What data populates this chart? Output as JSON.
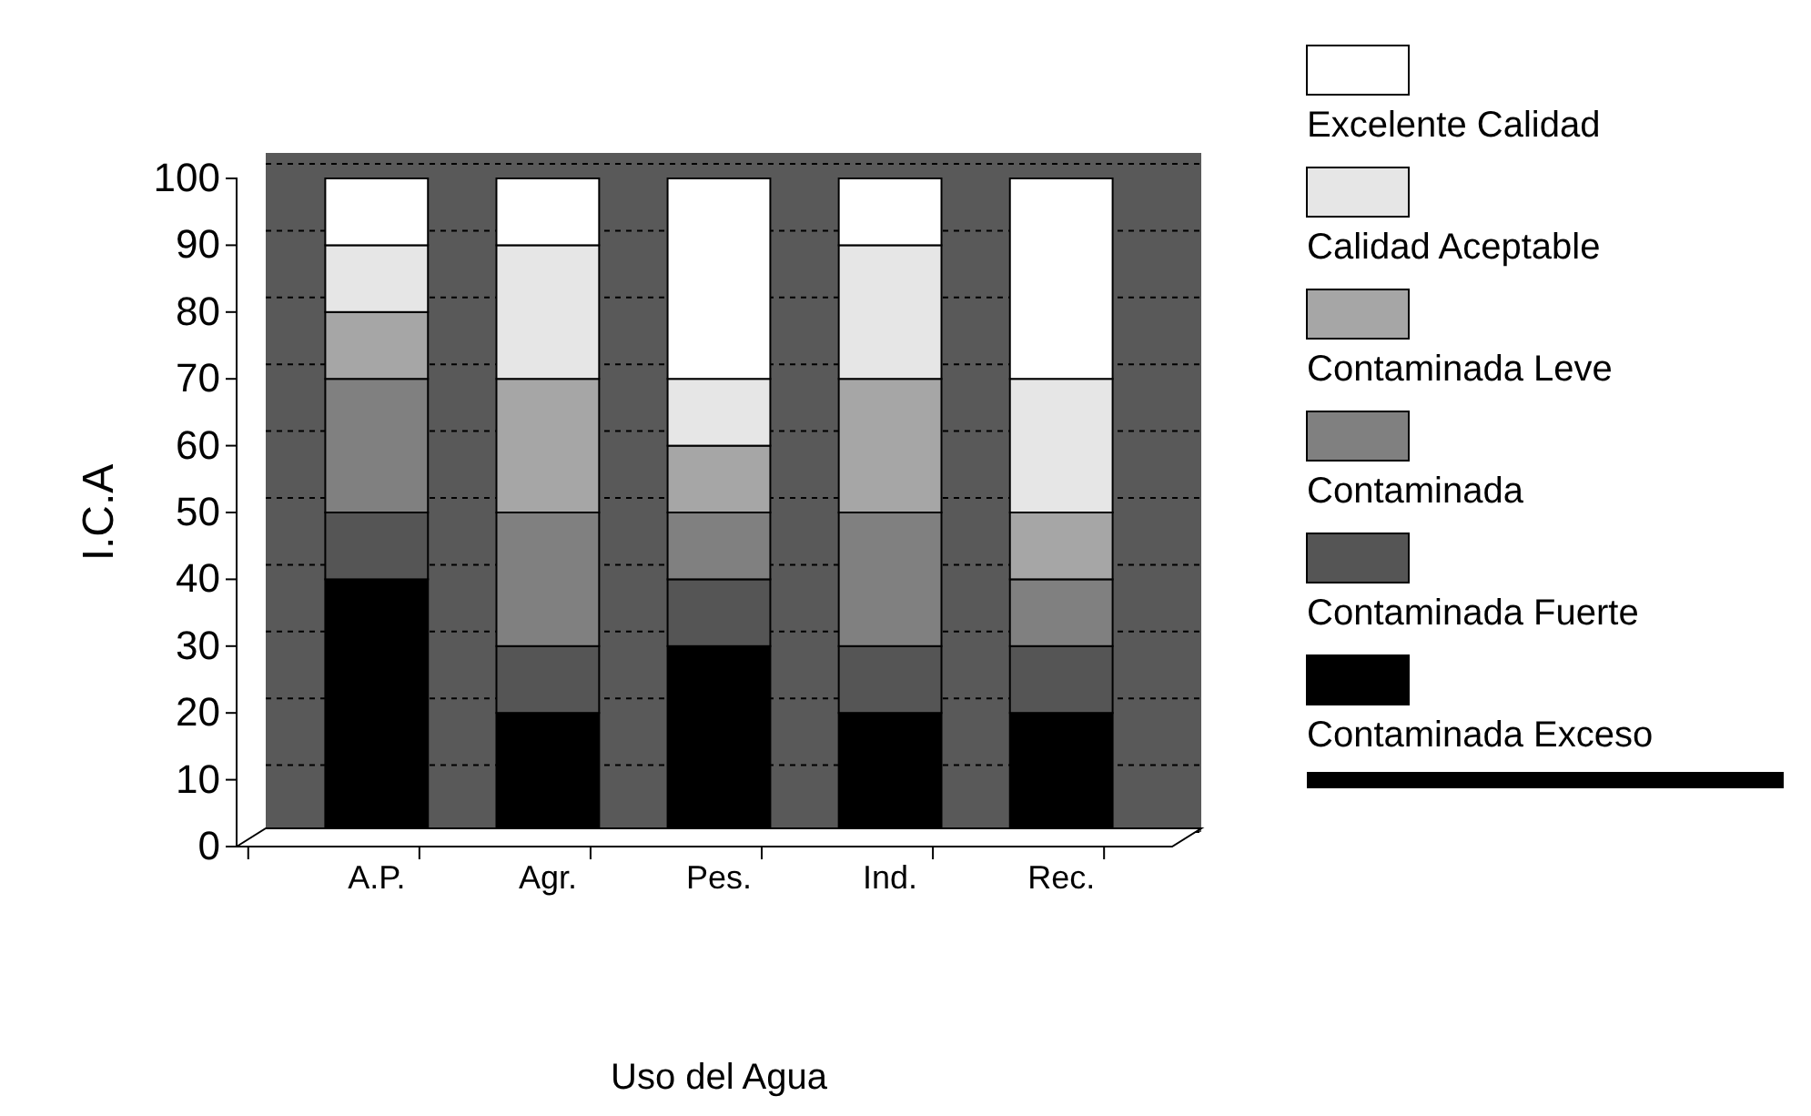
{
  "chart_data": {
    "type": "bar",
    "stacked": true,
    "xlabel": "Uso del Agua",
    "ylabel": "I.C.A",
    "categories": [
      "A.P.",
      "Agr.",
      "Pes.",
      "Ind.",
      "Rec."
    ],
    "series": [
      {
        "name": "Contaminada Exceso",
        "color": "#000000",
        "values": [
          40,
          20,
          30,
          20,
          20
        ]
      },
      {
        "name": "Contaminada Fuerte",
        "color": "#555555",
        "values": [
          10,
          10,
          10,
          10,
          10
        ]
      },
      {
        "name": "Contaminada",
        "color": "#808080",
        "values": [
          20,
          20,
          10,
          20,
          10
        ]
      },
      {
        "name": "Contaminada Leve",
        "color": "#a6a6a6",
        "values": [
          10,
          20,
          10,
          20,
          10
        ]
      },
      {
        "name": "Calidad Aceptable",
        "color": "#e6e6e6",
        "values": [
          10,
          20,
          10,
          20,
          20
        ]
      },
      {
        "name": "Excelente Calidad",
        "color": "#ffffff",
        "values": [
          10,
          10,
          30,
          10,
          30
        ]
      }
    ],
    "ylim": [
      0,
      100
    ],
    "yticks": [
      0,
      10,
      20,
      30,
      40,
      50,
      60,
      70,
      80,
      90,
      100
    ],
    "grid": "y",
    "legend": "right"
  }
}
